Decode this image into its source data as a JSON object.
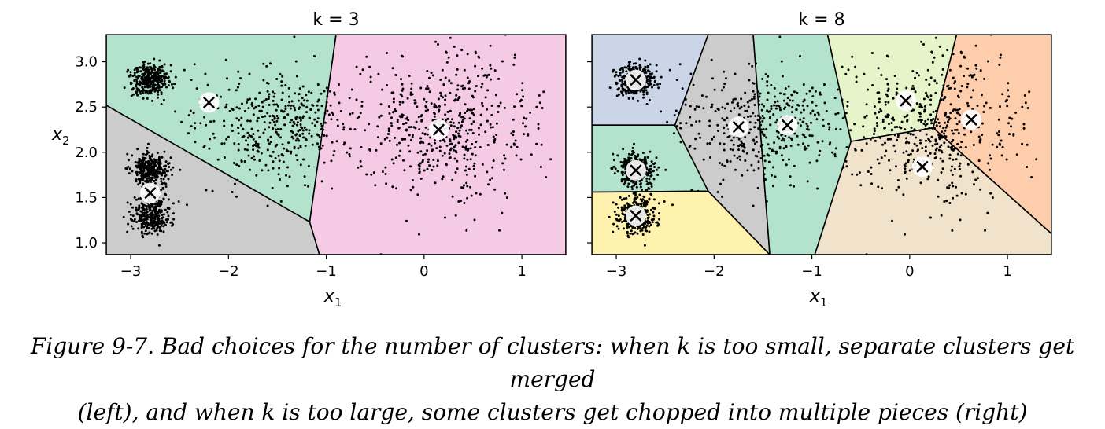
{
  "caption": {
    "line1": "Figure 9-7. Bad choices for the number of clusters: when k is too small, separate clusters get merged",
    "line2": "(left), and when k is too large, some clusters get chopped into multiple pieces (right)"
  },
  "chart_data": [
    {
      "type": "scatter",
      "title": "k = 3",
      "xlabel": "x1",
      "ylabel": "x2",
      "xlim": [
        -3.25,
        1.45
      ],
      "ylim": [
        0.87,
        3.3
      ],
      "xticks": [
        -3,
        -2,
        -1,
        0,
        1
      ],
      "yticks": [
        1.0,
        1.5,
        2.0,
        2.5,
        3.0
      ],
      "centroids": [
        [
          -2.2,
          2.55
        ],
        [
          -2.8,
          1.55
        ],
        [
          0.15,
          2.25
        ]
      ],
      "regions": [
        {
          "color": "#b3e2cd",
          "polygon": [
            [
              -3.25,
              3.3
            ],
            [
              -0.9,
              3.3
            ],
            [
              -1.17,
              1.23
            ],
            [
              -3.25,
              2.52
            ]
          ]
        },
        {
          "color": "#cccccc",
          "polygon": [
            [
              -3.25,
              2.52
            ],
            [
              -1.17,
              1.23
            ],
            [
              -1.07,
              0.87
            ],
            [
              -3.25,
              0.87
            ]
          ]
        },
        {
          "color": "#f4cae4",
          "polygon": [
            [
              -0.9,
              3.3
            ],
            [
              1.45,
              3.3
            ],
            [
              1.45,
              0.87
            ],
            [
              -1.07,
              0.87
            ],
            [
              -1.17,
              1.23
            ]
          ]
        }
      ],
      "blobs": [
        {
          "cx": -2.8,
          "cy": 2.8,
          "sx": 0.1,
          "sy": 0.1,
          "n": 320
        },
        {
          "cx": -2.8,
          "cy": 1.8,
          "sx": 0.1,
          "sy": 0.1,
          "n": 320
        },
        {
          "cx": -2.8,
          "cy": 1.3,
          "sx": 0.1,
          "sy": 0.1,
          "n": 320
        },
        {
          "cx": -1.5,
          "cy": 2.3,
          "sx": 0.4,
          "sy": 0.3,
          "n": 420
        },
        {
          "cx": 0.2,
          "cy": 2.3,
          "sx": 0.45,
          "sy": 0.42,
          "n": 520
        }
      ]
    },
    {
      "type": "scatter",
      "title": "k = 8",
      "xlabel": "x1",
      "ylabel": "",
      "xlim": [
        -3.25,
        1.45
      ],
      "ylim": [
        0.87,
        3.3
      ],
      "xticks": [
        -3,
        -2,
        -1,
        0,
        1
      ],
      "yticks": [
        1.0,
        1.5,
        2.0,
        2.5,
        3.0
      ],
      "centroids": [
        [
          -2.8,
          2.8
        ],
        [
          -2.8,
          1.8
        ],
        [
          -2.8,
          1.3
        ],
        [
          -1.75,
          2.28
        ],
        [
          -1.25,
          2.3
        ],
        [
          -0.04,
          2.57
        ],
        [
          0.13,
          1.84
        ],
        [
          0.63,
          2.36
        ]
      ],
      "regions": [
        {
          "color": "#cbd5e8",
          "polygon": [
            [
              -3.25,
              3.3
            ],
            [
              -2.06,
              3.3
            ],
            [
              -2.4,
              2.3
            ],
            [
              -3.25,
              2.3
            ]
          ]
        },
        {
          "color": "#b3e2cd",
          "polygon": [
            [
              -3.25,
              2.3
            ],
            [
              -2.4,
              2.3
            ],
            [
              -2.06,
              1.57
            ],
            [
              -3.25,
              1.56
            ]
          ]
        },
        {
          "color": "#fff2ae",
          "polygon": [
            [
              -3.25,
              1.56
            ],
            [
              -2.06,
              1.57
            ],
            [
              -1.43,
              0.87
            ],
            [
              -3.25,
              0.87
            ]
          ]
        },
        {
          "color": "#cccccc",
          "polygon": [
            [
              -2.06,
              3.3
            ],
            [
              -1.6,
              3.3
            ],
            [
              -1.43,
              0.87
            ],
            [
              -2.06,
              1.57
            ],
            [
              -2.4,
              2.3
            ]
          ]
        },
        {
          "color": "#b3e2cd",
          "polygon": [
            [
              -1.6,
              3.3
            ],
            [
              -0.84,
              3.3
            ],
            [
              -0.6,
              2.12
            ],
            [
              -0.97,
              0.87
            ],
            [
              -1.43,
              0.87
            ]
          ]
        },
        {
          "color": "#e6f5c9",
          "polygon": [
            [
              -0.84,
              3.3
            ],
            [
              0.48,
              3.3
            ],
            [
              0.24,
              2.27
            ],
            [
              -0.6,
              2.12
            ]
          ]
        },
        {
          "color": "#fdcdac",
          "polygon": [
            [
              0.48,
              3.3
            ],
            [
              1.45,
              3.3
            ],
            [
              1.45,
              1.1
            ],
            [
              0.24,
              2.27
            ]
          ]
        },
        {
          "color": "#f1e2cc",
          "polygon": [
            [
              -0.6,
              2.12
            ],
            [
              0.24,
              2.27
            ],
            [
              1.45,
              1.1
            ],
            [
              1.45,
              0.87
            ],
            [
              -0.97,
              0.87
            ]
          ]
        }
      ],
      "blobs": [
        {
          "cx": -2.8,
          "cy": 2.8,
          "sx": 0.1,
          "sy": 0.1,
          "n": 320
        },
        {
          "cx": -2.8,
          "cy": 1.8,
          "sx": 0.1,
          "sy": 0.1,
          "n": 320
        },
        {
          "cx": -2.8,
          "cy": 1.3,
          "sx": 0.1,
          "sy": 0.1,
          "n": 320
        },
        {
          "cx": -1.5,
          "cy": 2.3,
          "sx": 0.4,
          "sy": 0.3,
          "n": 420
        },
        {
          "cx": 0.2,
          "cy": 2.3,
          "sx": 0.45,
          "sy": 0.42,
          "n": 520
        }
      ]
    }
  ]
}
